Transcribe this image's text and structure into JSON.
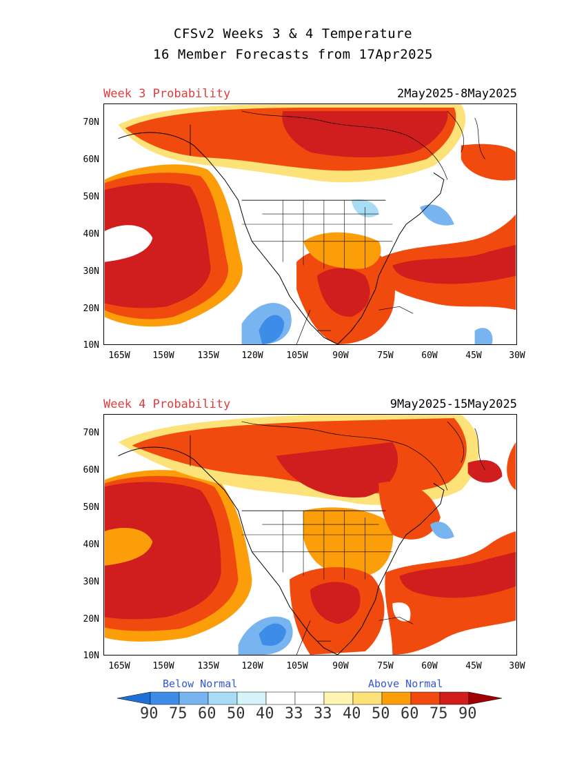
{
  "title_line1": "CFSv2 Weeks 3 & 4 Temperature",
  "title_line2": "16 Member Forecasts from 17Apr2025",
  "panels": [
    {
      "label": "Week 3 Probability",
      "dates": "2May2025-8May2025"
    },
    {
      "label": "Week 4 Probability",
      "dates": "9May2025-15May2025"
    }
  ],
  "lat_labels": [
    "70N",
    "60N",
    "50N",
    "40N",
    "30N",
    "20N",
    "10N"
  ],
  "lon_labels": [
    "165W",
    "150W",
    "135W",
    "120W",
    "105W",
    "90W",
    "75W",
    "60W",
    "45W",
    "30W"
  ],
  "legend": {
    "below_label": "Below Normal",
    "above_label": "Above Normal",
    "values": [
      "90",
      "75",
      "60",
      "50",
      "40",
      "33",
      "33",
      "40",
      "50",
      "60",
      "75",
      "90"
    ],
    "colors": {
      "below_90": "#1e6fd6",
      "below_75": "#3c8ce8",
      "below_60": "#78b4f0",
      "below_50": "#a8dcf4",
      "below_40": "#d6f5fa",
      "above_40": "#fff5b0",
      "above_50": "#fde27a",
      "above_60": "#fb9e0a",
      "above_75": "#f04a0f",
      "above_90": "#d01e1e",
      "above_max": "#a00000"
    }
  }
}
